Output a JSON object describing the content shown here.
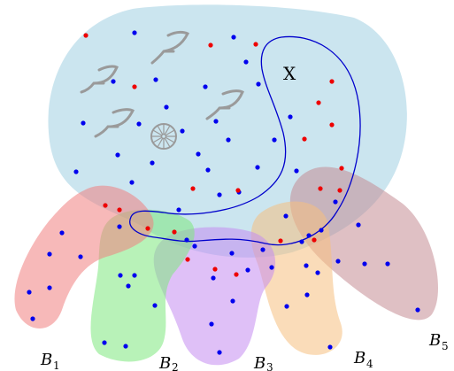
{
  "set_x": {
    "label": "X"
  },
  "sets": [
    {
      "id": "B1",
      "letter": "B",
      "index": "1",
      "color": "#f08080"
    },
    {
      "id": "B2",
      "letter": "B",
      "index": "2",
      "color": "#7de87d"
    },
    {
      "id": "B3",
      "letter": "B",
      "index": "3",
      "color": "#c48cf0"
    },
    {
      "id": "B4",
      "letter": "B",
      "index": "4",
      "color": "#f5bf80"
    },
    {
      "id": "B5",
      "letter": "B",
      "index": "5",
      "color": "#c48c94"
    }
  ],
  "colors": {
    "blob": "#a8d3e4",
    "outline": "#0000cc",
    "point_blue": "#0000ee",
    "point_red": "#ee0000",
    "icon": "#9a9a9a"
  },
  "icons": [
    "leaf-icon",
    "leaf-icon",
    "leaf-icon",
    "leaf-icon",
    "leaf-icon",
    "wheel-icon"
  ]
}
